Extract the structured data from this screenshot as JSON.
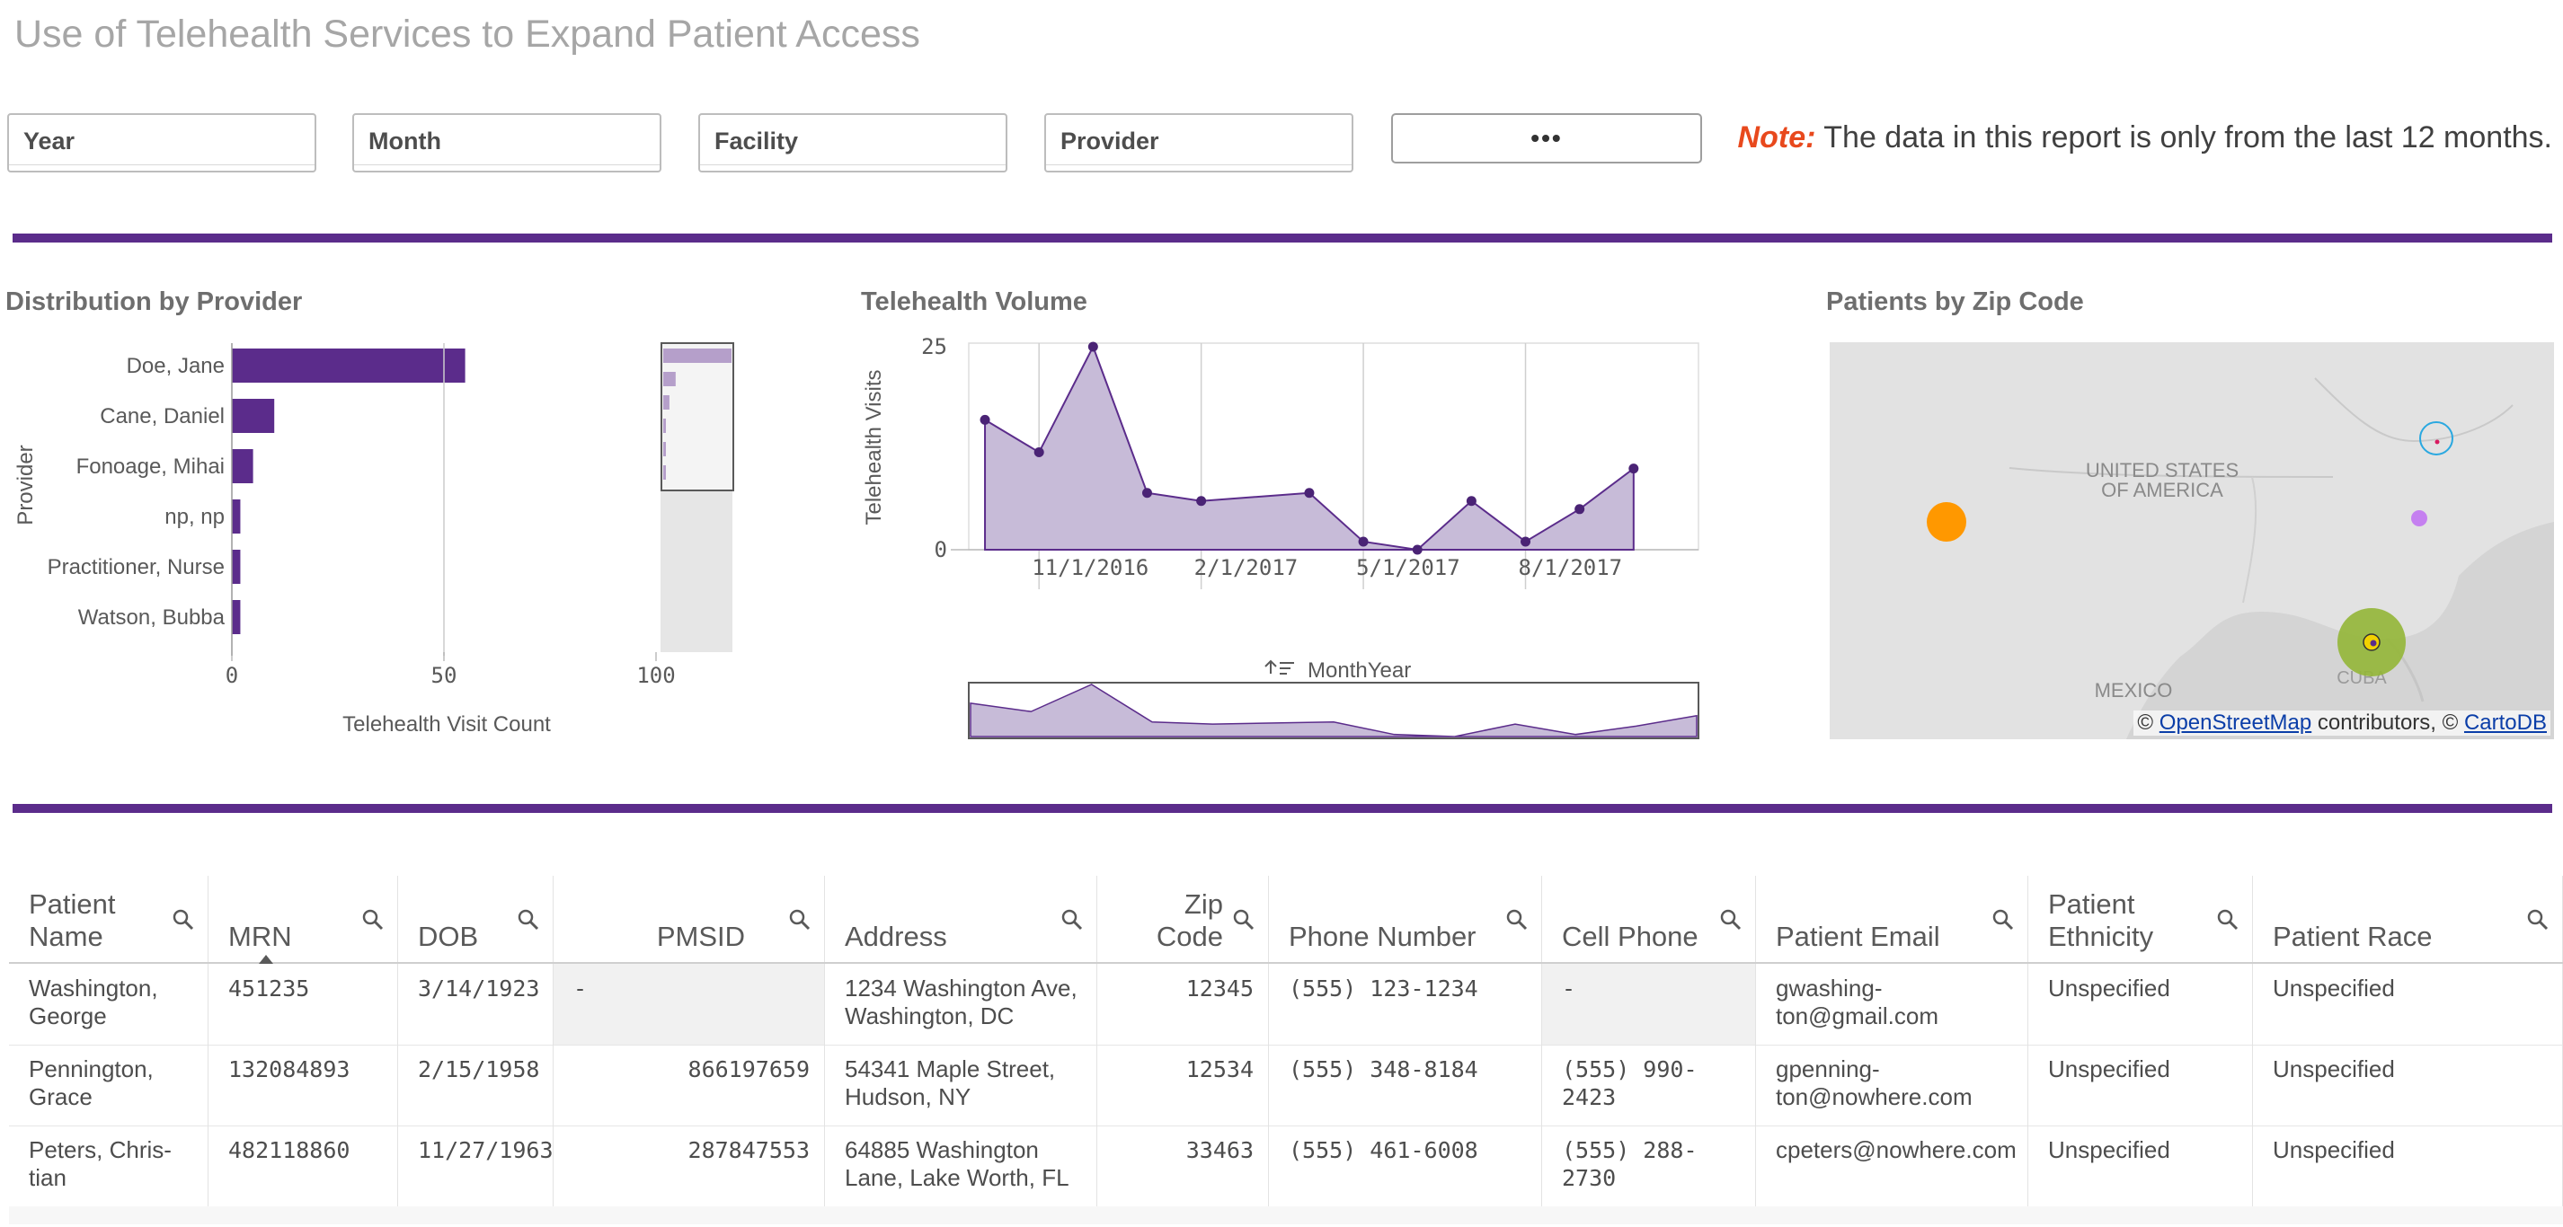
{
  "title": "Use of Telehealth Services to Expand Patient Access",
  "filters": [
    {
      "label": "Year"
    },
    {
      "label": "Month"
    },
    {
      "label": "Facility"
    },
    {
      "label": "Provider"
    }
  ],
  "more_button": "•••",
  "note": {
    "prefix": "Note:",
    "text": " The data in this report is only from the last 12 months."
  },
  "colors": {
    "accent": "#5b2c8b",
    "note": "#e8491d",
    "area": "#c7bbd8"
  },
  "provider_chart": {
    "title": "Distribution by Provider",
    "chart_data": {
      "type": "bar",
      "orientation": "horizontal",
      "categories": [
        "Doe, Jane",
        "Cane, Daniel",
        "Fonoage, Mihai",
        "np, np",
        "Practitioner, Nurse",
        "Watson, Bubba"
      ],
      "values": [
        55,
        10,
        5,
        2,
        2,
        2
      ],
      "xlabel": "Telehealth Visit Count",
      "ylabel": "Provider",
      "xticks": [
        "0",
        "50",
        "100"
      ],
      "xlim": [
        0,
        100
      ]
    }
  },
  "volume_chart": {
    "title": "Telehealth Volume",
    "chart_data": {
      "type": "area",
      "x": [
        "10/1/2016",
        "11/1/2016",
        "12/1/2016",
        "1/1/2017",
        "2/1/2017",
        "4/1/2017",
        "5/1/2017",
        "6/1/2017",
        "7/1/2017",
        "8/1/2017",
        "9/1/2017",
        "10/1/2017"
      ],
      "values": [
        16,
        12,
        25,
        7,
        6,
        7,
        1,
        0,
        6,
        1,
        5,
        10
      ],
      "ylabel": "Telehealth Visits",
      "yticks": [
        "25",
        "0"
      ],
      "xticks": [
        "11/1/2016",
        "2/1/2017",
        "5/1/2017",
        "8/1/2017"
      ],
      "ylim": [
        0,
        25
      ],
      "xaxis_title": "MonthYear"
    }
  },
  "map": {
    "title": "Patients by Zip Code",
    "labels": {
      "usa": "UNITED STATES OF AMERICA",
      "mexico": "MEXICO",
      "cuba": "CUBA"
    },
    "attribution": {
      "prefix": "© ",
      "osm": "OpenStreetMap",
      "middle": " contributors, © ",
      "carto": "CartoDB"
    }
  },
  "table": {
    "columns": [
      "Patient Name",
      "MRN",
      "DOB",
      "PMSID",
      "Address",
      "Zip Code",
      "Phone Number",
      "Cell Phone",
      "Patient Email",
      "Patient Ethnicity",
      "Patient Race"
    ],
    "rows": [
      [
        "Washington, George",
        "451235",
        "3/14/1923",
        "-",
        "1234 Washington Ave, Washington, DC",
        "12345",
        "(555) 123-1234",
        "-",
        "gwashing-ton@gmail.com",
        "Unspecified",
        "Unspecified"
      ],
      [
        "Pennington, Grace",
        "132084893",
        "2/15/1958",
        "866197659",
        "54341 Maple Street, Hudson, NY",
        "12534",
        "(555) 348-8184",
        "(555) 990-2423",
        "gpenning-ton@nowhere.com",
        "Unspecified",
        "Unspecified"
      ],
      [
        "Peters, Chris-tian",
        "482118860",
        "11/27/1963",
        "287847553",
        "64885 Washington Lane, Lake Worth, FL",
        "33463",
        "(555) 461-6008",
        "(555) 288-2730",
        "cpeters@nowhere.com",
        "Unspecified",
        "Unspecified"
      ]
    ]
  }
}
